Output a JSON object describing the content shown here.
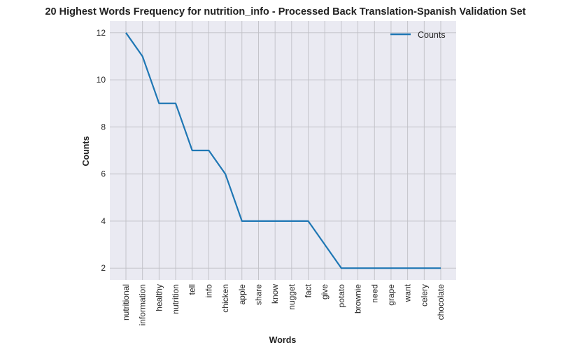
{
  "chart_data": {
    "type": "line",
    "title": "20 Highest Words Frequency for nutrition_info - Processed Back Translation-Spanish Validation Set",
    "xlabel": "Words",
    "ylabel": "Counts",
    "categories": [
      "nutritional",
      "information",
      "healthy",
      "nutrition",
      "tell",
      "info",
      "chicken",
      "apple",
      "share",
      "know",
      "nugget",
      "fact",
      "give",
      "potato",
      "brownie",
      "need",
      "grape",
      "want",
      "celery",
      "chocolate"
    ],
    "series": [
      {
        "name": "Counts",
        "values": [
          12,
          11,
          9,
          9,
          7,
          7,
          6,
          4,
          4,
          4,
          4,
          4,
          3,
          2,
          2,
          2,
          2,
          2,
          2,
          2
        ],
        "color": "#1f77b4"
      }
    ],
    "ylim": [
      1.5,
      12.5
    ],
    "yticks": [
      2,
      4,
      6,
      8,
      10,
      12
    ],
    "grid": true,
    "legend": "top-right",
    "colors": {
      "plot_bg": "#eaeaf2",
      "grid": "#c0c0c6"
    }
  }
}
